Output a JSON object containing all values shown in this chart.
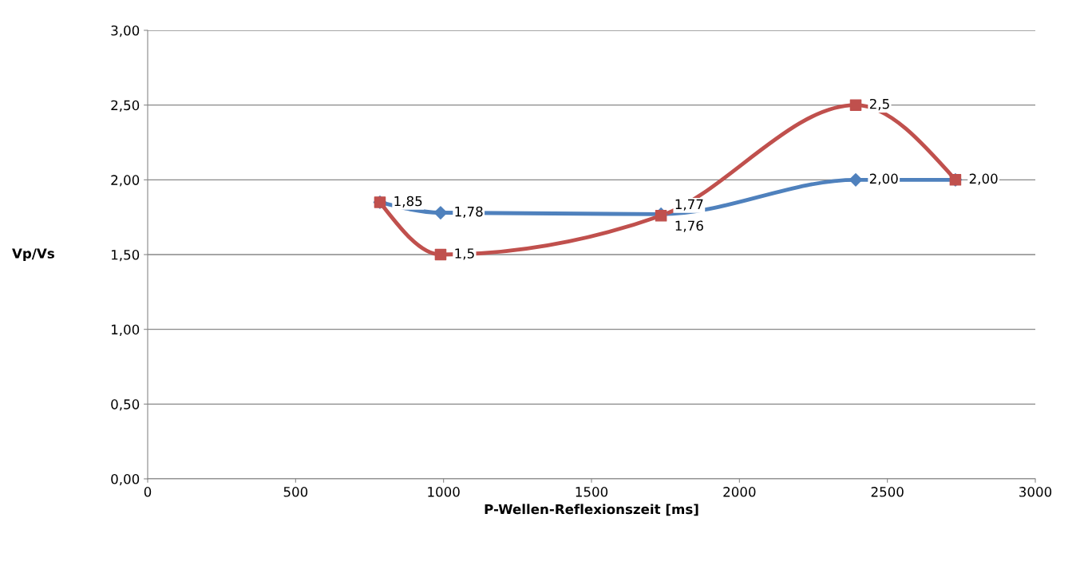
{
  "chart_data": {
    "type": "line",
    "xlabel": "P-Wellen-Reflexionszeit [ms]",
    "ylabel": "Vp/Vs",
    "x": [
      785,
      990,
      1735,
      2393,
      2730
    ],
    "series": [
      {
        "color": "#4f81bd",
        "marker": "diamond",
        "values": [
          1.85,
          1.78,
          1.77,
          2.0,
          2.0
        ],
        "value_labels": [
          null,
          "1,78",
          "1,77",
          "2,00",
          null
        ]
      },
      {
        "color": "#c0504d",
        "marker": "square",
        "values": [
          1.85,
          1.5,
          1.76,
          2.5,
          2.0
        ],
        "value_labels": [
          "1,85",
          "1,5",
          "1,76",
          "2,5",
          "2,00"
        ]
      }
    ],
    "xlim": [
      0,
      3000
    ],
    "xticks": [
      0,
      500,
      1000,
      1500,
      2000,
      2500,
      3000
    ],
    "ylim": [
      0,
      3
    ],
    "yticks": [
      {
        "value": 0,
        "label": "0,00"
      },
      {
        "value": 0.5,
        "label": "0,50"
      },
      {
        "value": 1,
        "label": "1,00"
      },
      {
        "value": 1.5,
        "label": "1,50"
      },
      {
        "value": 2,
        "label": "2,00"
      },
      {
        "value": 2.5,
        "label": "2,50"
      },
      {
        "value": 3,
        "label": "3,00"
      }
    ],
    "grid": "y"
  }
}
